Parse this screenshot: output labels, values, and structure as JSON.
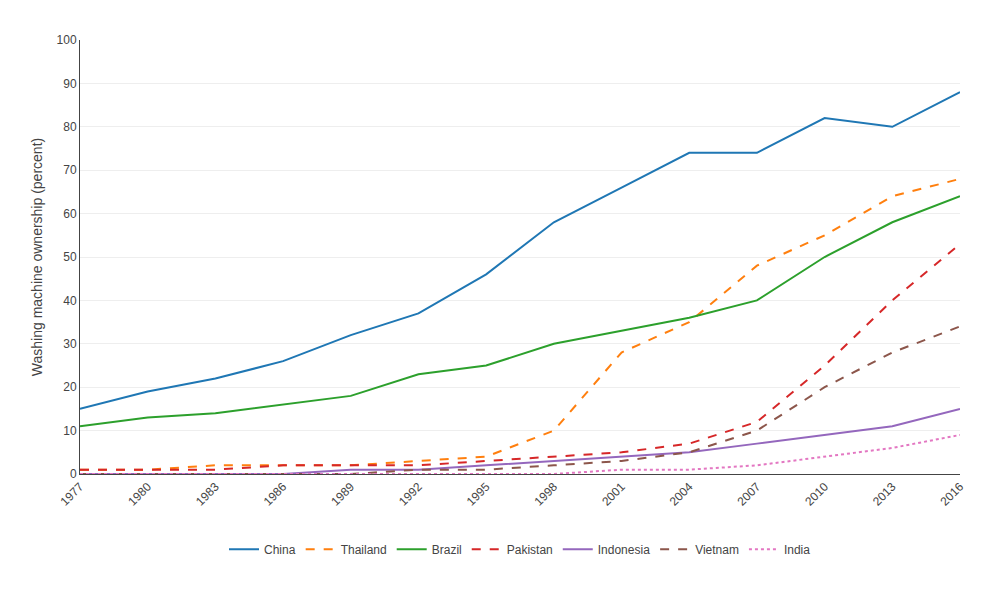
{
  "chart_data": {
    "type": "line",
    "x": [
      1977,
      1980,
      1983,
      1986,
      1989,
      1992,
      1995,
      1998,
      2001,
      2004,
      2007,
      2010,
      2013,
      2016
    ],
    "series": [
      {
        "name": "China",
        "line_style": "solid",
        "values": [
          15,
          19,
          22,
          26,
          32,
          37,
          46,
          58,
          66,
          74,
          74,
          82,
          80,
          88
        ]
      },
      {
        "name": "Thailand",
        "line_style": "dash",
        "values": [
          1,
          1,
          2,
          2,
          2,
          3,
          4,
          10,
          28,
          35,
          48,
          55,
          64,
          68
        ]
      },
      {
        "name": "Brazil",
        "line_style": "solid",
        "values": [
          11,
          13,
          14,
          16,
          18,
          23,
          25,
          30,
          33,
          36,
          40,
          50,
          58,
          64
        ]
      },
      {
        "name": "Pakistan",
        "line_style": "dash",
        "values": [
          1,
          1,
          1,
          2,
          2,
          2,
          3,
          4,
          5,
          7,
          12,
          25,
          40,
          53
        ]
      },
      {
        "name": "Indonesia",
        "line_style": "solid",
        "values": [
          0,
          0,
          0,
          0,
          1,
          1,
          2,
          3,
          4,
          5,
          7,
          9,
          11,
          15
        ]
      },
      {
        "name": "Vietnam",
        "line_style": "dash",
        "values": [
          0,
          0,
          0,
          0,
          0,
          1,
          1,
          2,
          3,
          5,
          10,
          20,
          28,
          34
        ]
      },
      {
        "name": "India",
        "line_style": "dot",
        "values": [
          0,
          0,
          0,
          0,
          0,
          0,
          0,
          0,
          1,
          1,
          2,
          4,
          6,
          9
        ]
      }
    ],
    "y_label": "Washing machine ownership (percent)",
    "xlim": [
      1977,
      2016
    ],
    "xticks": [
      1977,
      1980,
      1983,
      1986,
      1989,
      1992,
      1995,
      1998,
      2001,
      2004,
      2007,
      2010,
      2013,
      2016
    ],
    "ylim": [
      0,
      100
    ],
    "yticks": [
      0,
      10,
      20,
      30,
      40,
      50,
      60,
      70,
      80,
      90,
      100
    ],
    "grid": "y",
    "legend": "bottom"
  }
}
